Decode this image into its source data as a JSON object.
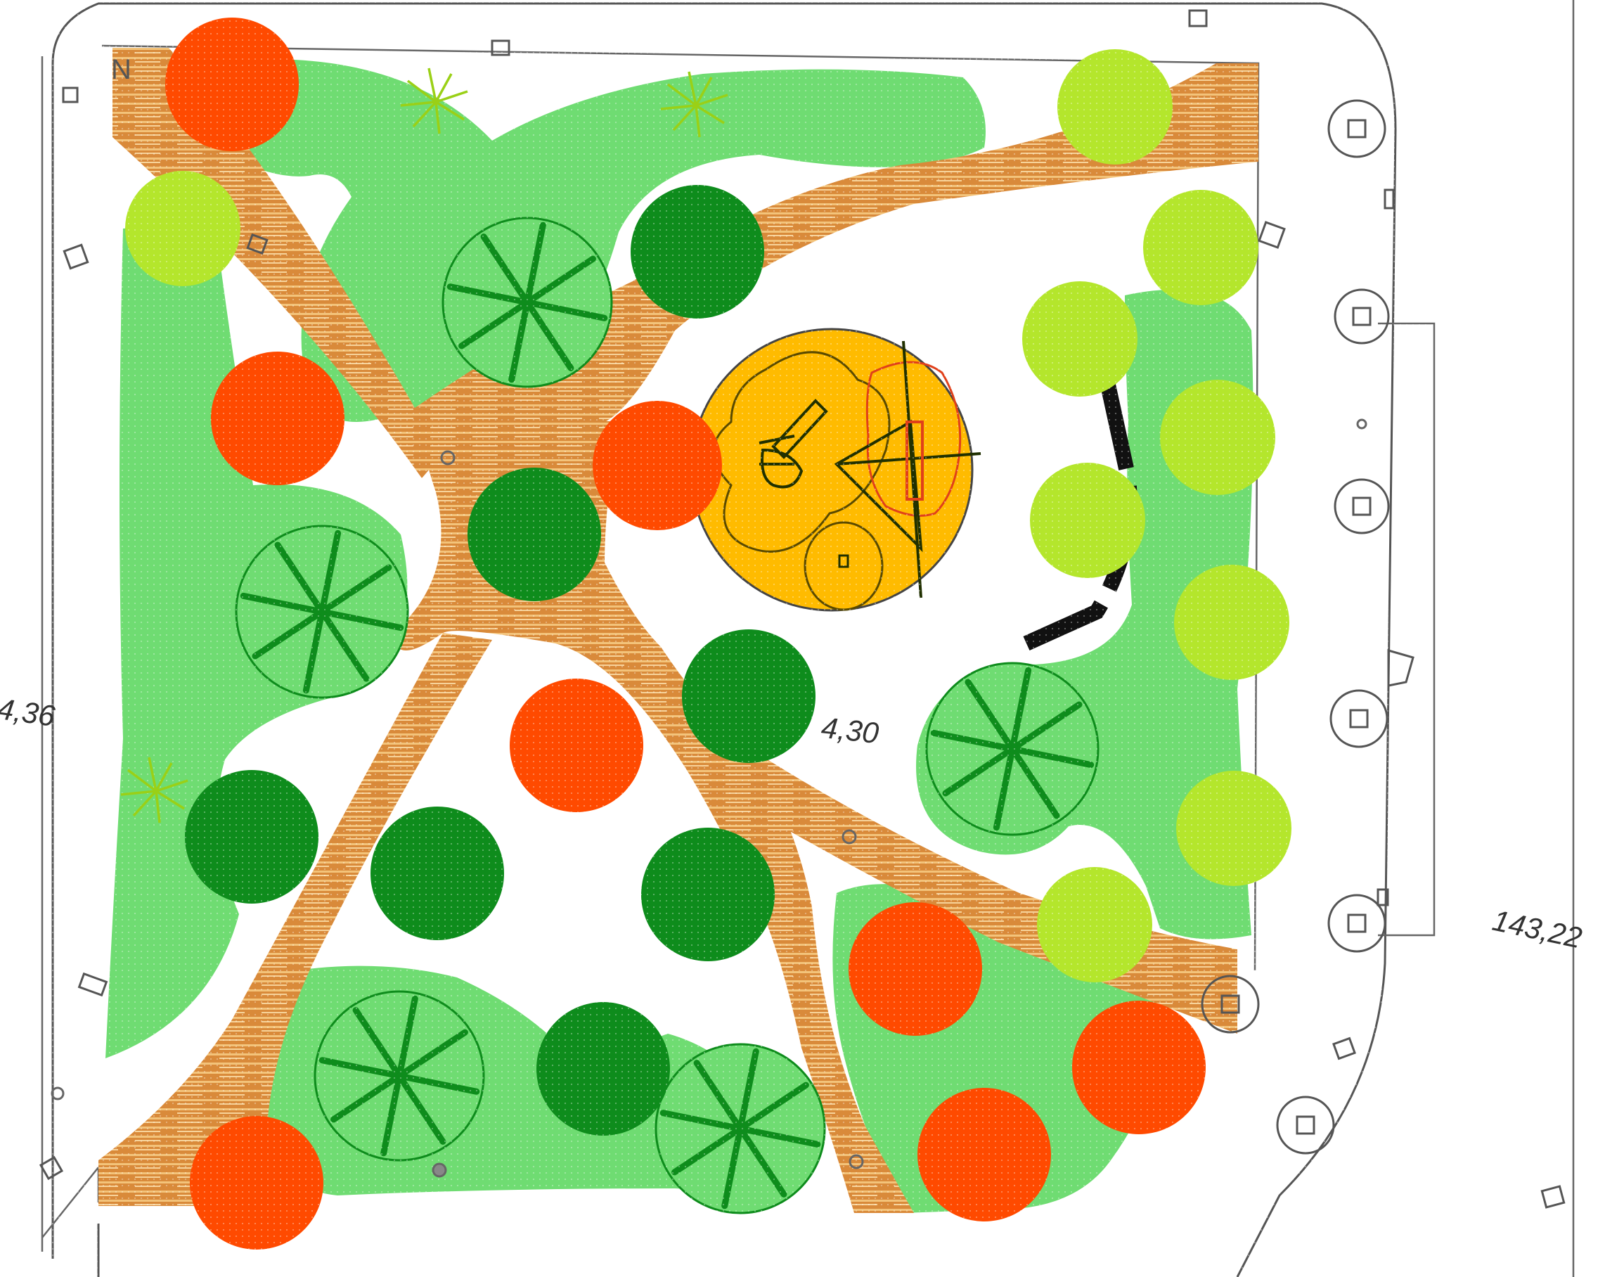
{
  "drawing": {
    "north_label": "N",
    "elevations": [
      "4,36",
      "4,30",
      "143,22"
    ]
  },
  "colors": {
    "path_wood": "#d98a3a",
    "path_stripe": "#f3c37a",
    "lawn": "#6fdc72",
    "tree_red": "#ff4a00",
    "tree_dark_green": "#0e8c1c",
    "tree_lime": "#b4e62c",
    "play_area": "#ffbb00",
    "bench": "#111111"
  },
  "icons": {
    "north_arrow": "north-icon",
    "spoke_shrub": "shrub-icon",
    "palm": "palm-icon",
    "lamp": "lamp-icon",
    "manhole": "manhole-icon",
    "slide": "slide-icon",
    "swing": "swing-icon"
  }
}
